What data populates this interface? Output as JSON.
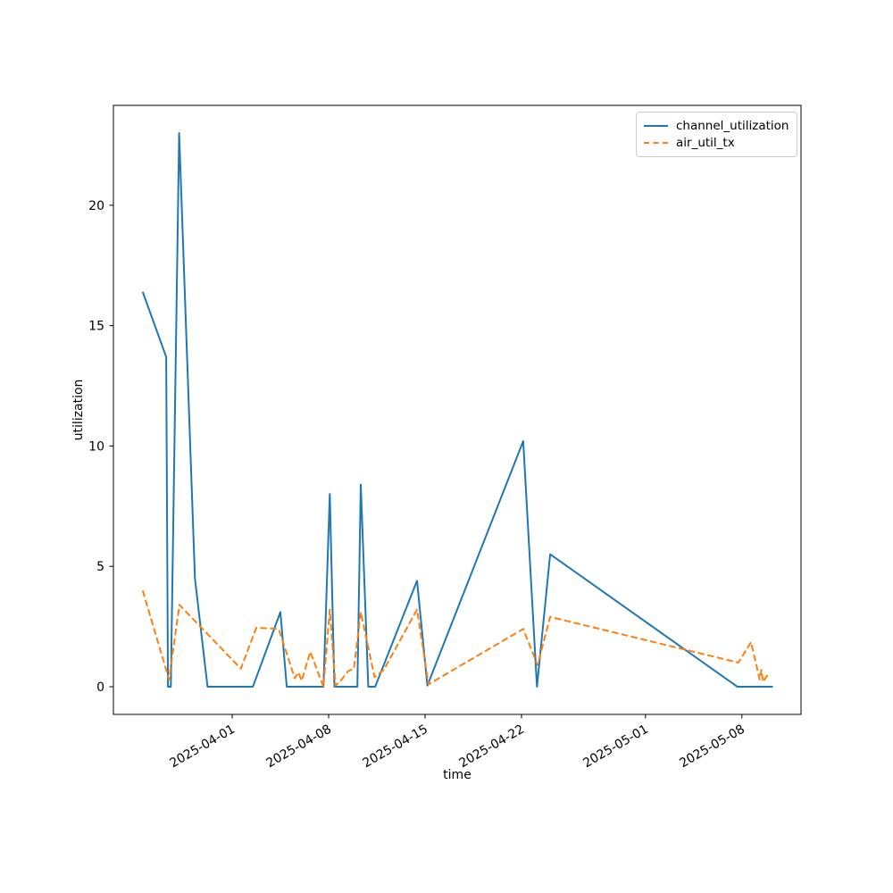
{
  "figure": {
    "background": "#ffffff",
    "plot_border_color": "#000000"
  },
  "chart_data": {
    "type": "line",
    "title": "",
    "xlabel": "time",
    "ylabel": "utilization",
    "grid": false,
    "legend_position": "upper right",
    "xlim": [
      "2025-03-23T09:00:00",
      "2025-05-12T07:00:00"
    ],
    "ylim": [
      -1.15,
      24.15
    ],
    "xticks": [
      {
        "value": "2025-04-01T00:00:00",
        "label": "2025-04-01"
      },
      {
        "value": "2025-04-08T00:00:00",
        "label": "2025-04-08"
      },
      {
        "value": "2025-04-15T00:00:00",
        "label": "2025-04-15"
      },
      {
        "value": "2025-04-22T00:00:00",
        "label": "2025-04-22"
      },
      {
        "value": "2025-05-01T00:00:00",
        "label": "2025-05-01"
      },
      {
        "value": "2025-05-08T00:00:00",
        "label": "2025-05-08"
      }
    ],
    "yticks": [
      0,
      5,
      10,
      15,
      20
    ],
    "series": [
      {
        "name": "channel_utilization",
        "color": "#1f77b4",
        "line_style": "solid",
        "points": [
          [
            "2025-03-25T12:00:00",
            16.4
          ],
          [
            "2025-03-27T05:00:00",
            13.7
          ],
          [
            "2025-03-27T08:00:00",
            0.0
          ],
          [
            "2025-03-27T13:00:00",
            0.0
          ],
          [
            "2025-03-28T03:30:00",
            23.0
          ],
          [
            "2025-03-29T07:00:00",
            4.5
          ],
          [
            "2025-03-30T05:00:00",
            0.0
          ],
          [
            "2025-04-02T12:00:00",
            0.0
          ],
          [
            "2025-04-04T12:00:00",
            3.1
          ],
          [
            "2025-04-04T23:00:00",
            0.0
          ],
          [
            "2025-04-07T15:00:00",
            0.0
          ],
          [
            "2025-04-08T02:00:00",
            8.0
          ],
          [
            "2025-04-08T10:00:00",
            0.0
          ],
          [
            "2025-04-10T02:00:00",
            0.0
          ],
          [
            "2025-04-10T08:00:00",
            8.4
          ],
          [
            "2025-04-10T21:00:00",
            0.0
          ],
          [
            "2025-04-11T09:00:00",
            0.0
          ],
          [
            "2025-04-14T10:00:00",
            4.4
          ],
          [
            "2025-04-15T04:00:00",
            0.05
          ],
          [
            "2025-04-22T03:00:00",
            10.2
          ],
          [
            "2025-04-23T03:00:00",
            0.0
          ],
          [
            "2025-04-24T02:00:00",
            5.5
          ],
          [
            "2025-05-07T16:00:00",
            0.0
          ],
          [
            "2025-05-10T06:00:00",
            0.0
          ]
        ]
      },
      {
        "name": "air_util_tx",
        "color": "#ff7f0e",
        "line_style": "dashed",
        "points": [
          [
            "2025-03-25T12:00:00",
            4.0
          ],
          [
            "2025-03-27T10:00:00",
            0.3
          ],
          [
            "2025-03-28T04:00:00",
            3.4
          ],
          [
            "2025-04-01T15:00:00",
            0.75
          ],
          [
            "2025-04-02T18:00:00",
            2.45
          ],
          [
            "2025-04-04T09:00:00",
            2.4
          ],
          [
            "2025-04-05T13:00:00",
            0.35
          ],
          [
            "2025-04-05T19:00:00",
            0.6
          ],
          [
            "2025-04-06T01:00:00",
            0.25
          ],
          [
            "2025-04-06T16:00:00",
            1.45
          ],
          [
            "2025-04-07T15:00:00",
            0.0
          ],
          [
            "2025-04-08T02:00:00",
            3.2
          ],
          [
            "2025-04-08T12:00:00",
            0.05
          ],
          [
            "2025-04-08T21:00:00",
            0.25
          ],
          [
            "2025-04-09T10:00:00",
            0.65
          ],
          [
            "2025-04-09T20:00:00",
            0.75
          ],
          [
            "2025-04-10T08:00:00",
            3.1
          ],
          [
            "2025-04-11T08:00:00",
            0.4
          ],
          [
            "2025-04-12T00:00:00",
            0.7
          ],
          [
            "2025-04-14T10:00:00",
            3.2
          ],
          [
            "2025-04-15T06:00:00",
            0.1
          ],
          [
            "2025-04-22T03:00:00",
            2.4
          ],
          [
            "2025-04-23T04:00:00",
            0.9
          ],
          [
            "2025-04-24T02:00:00",
            2.9
          ],
          [
            "2025-05-07T18:00:00",
            1.0
          ],
          [
            "2025-05-08T16:00:00",
            1.85
          ],
          [
            "2025-05-09T07:00:00",
            0.3
          ],
          [
            "2025-05-09T10:00:00",
            0.7
          ],
          [
            "2025-05-09T13:00:00",
            0.2
          ],
          [
            "2025-05-09T21:00:00",
            0.5
          ]
        ]
      }
    ]
  }
}
